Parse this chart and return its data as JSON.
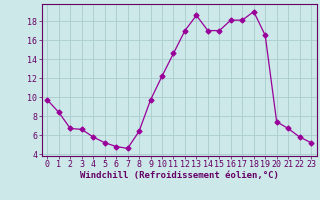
{
  "x": [
    0,
    1,
    2,
    3,
    4,
    5,
    6,
    7,
    8,
    9,
    10,
    11,
    12,
    13,
    14,
    15,
    16,
    17,
    18,
    19,
    20,
    21,
    22,
    23
  ],
  "y": [
    9.7,
    8.4,
    6.7,
    6.6,
    5.8,
    5.2,
    4.8,
    4.6,
    6.4,
    9.7,
    12.2,
    14.6,
    17.0,
    18.6,
    17.0,
    17.0,
    18.1,
    18.1,
    19.0,
    16.5,
    7.4,
    6.7,
    5.8,
    5.2
  ],
  "line_color": "#990099",
  "marker": "D",
  "marker_size": 2.5,
  "bg_color": "#cce8e8",
  "grid_color": "#aacccc",
  "xlabel": "Windchill (Refroidissement éolien,°C)",
  "xlabel_color": "#660066",
  "tick_color": "#660066",
  "spine_color": "#660066",
  "xlim": [
    -0.5,
    23.5
  ],
  "ylim": [
    3.8,
    19.8
  ],
  "yticks": [
    4,
    6,
    8,
    10,
    12,
    14,
    16,
    18
  ],
  "xticks": [
    0,
    1,
    2,
    3,
    4,
    5,
    6,
    7,
    8,
    9,
    10,
    11,
    12,
    13,
    14,
    15,
    16,
    17,
    18,
    19,
    20,
    21,
    22,
    23
  ],
  "tick_fontsize": 6.0,
  "xlabel_fontsize": 6.5
}
